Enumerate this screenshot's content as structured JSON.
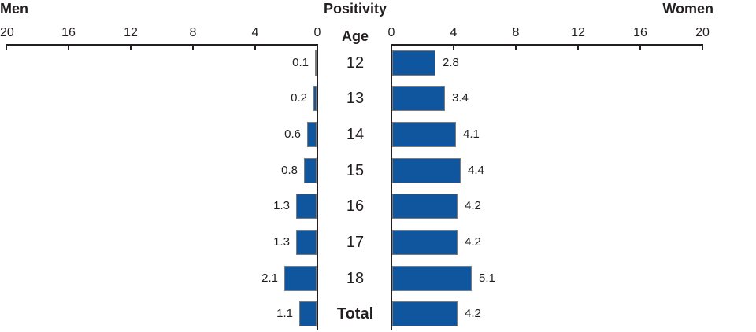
{
  "header": {
    "left_title": "Men",
    "center_title": "Positivity",
    "right_title": "Women",
    "category_axis_title": "Age"
  },
  "colors": {
    "bar_fill": "#10569E",
    "bar_border": "#7C7C7C",
    "axis_line": "#231F20",
    "text": "#231F20"
  },
  "chart_data": {
    "type": "bar",
    "variant": "bidirectional-pyramid",
    "title": "Positivity",
    "category_axis_label": "Age",
    "categories": [
      "12",
      "13",
      "14",
      "15",
      "16",
      "17",
      "18",
      "Total"
    ],
    "series": [
      {
        "name": "Men",
        "side": "left",
        "values": [
          0.1,
          0.2,
          0.6,
          0.8,
          1.3,
          1.3,
          2.1,
          1.1
        ]
      },
      {
        "name": "Women",
        "side": "right",
        "values": [
          2.8,
          3.4,
          4.1,
          4.4,
          4.2,
          4.2,
          5.1,
          4.2
        ]
      }
    ],
    "axis_ticks": [
      0,
      4,
      8,
      12,
      16,
      20
    ],
    "xlim": [
      0,
      20
    ],
    "grid": false,
    "value_labels_shown": true,
    "legend_position": "none"
  }
}
